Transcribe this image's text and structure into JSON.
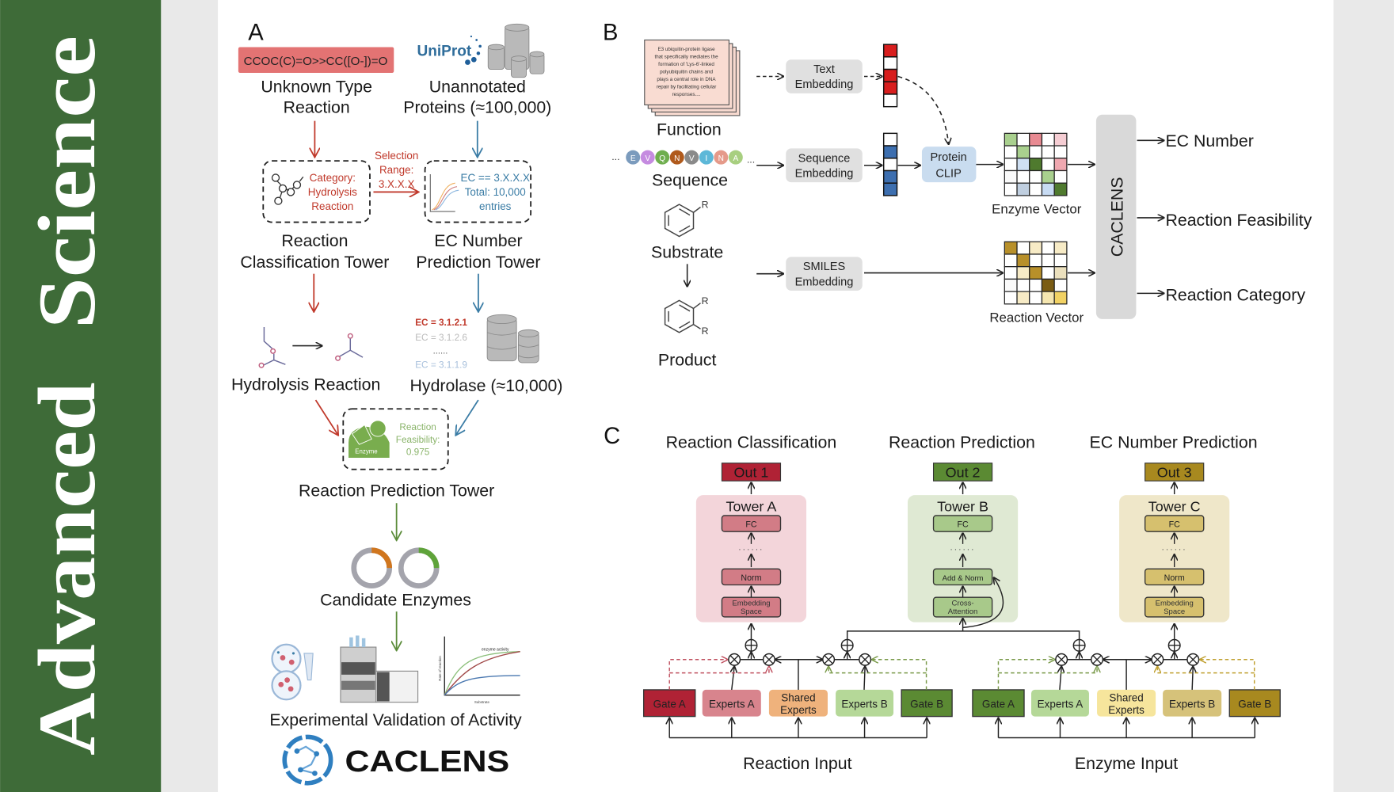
{
  "banner": {
    "word1": "Advanced",
    "word2": "Science",
    "color": "#3e6b38"
  },
  "panel_a": {
    "label": "A",
    "smiles": "CCOC(C)=O>>CC([O-])=O",
    "unknown_reaction": [
      "Unknown Type",
      "Reaction"
    ],
    "uniprot_logo": "UniProt",
    "proteins": [
      "Unannotated",
      "Proteins (≈100,000)"
    ],
    "category": [
      "Category:",
      "Hydrolysis",
      "Reaction"
    ],
    "selection": [
      "Selection",
      "Range:",
      "3.X.X.X"
    ],
    "ec_box": [
      "EC == 3.X.X.X",
      "Total: 10,000",
      "entries"
    ],
    "rc_tower": [
      "Reaction",
      "Classification Tower"
    ],
    "ec_tower": [
      "EC Number",
      "Prediction Tower"
    ],
    "hydrolysis": "Hydrolysis Reaction",
    "ec_list": [
      "EC = 3.1.2.1",
      "EC = 3.1.2.6",
      "......",
      "EC = 3.1.1.9"
    ],
    "hydrolase": "Hydrolase (≈10,000)",
    "enzyme_label": "Enzyme",
    "feasibility": [
      "Reaction",
      "Feasibility:",
      "0.975"
    ],
    "rp_tower": "Reaction Prediction Tower",
    "candidates": "Candidate Enzymes",
    "plot_title": "enzyme activity",
    "plot_x": "Substrate",
    "plot_y": "Rate of reaction",
    "validation": "Experimental Validation of Activity",
    "logo": "CACLENS",
    "colors": {
      "red": "#c0392b",
      "blue": "#3a7ca5",
      "green": "#5b8c3a",
      "smiles_bg": "#e37373"
    }
  },
  "panel_b": {
    "label": "B",
    "function_text": [
      "E3 ubiquitin-protein ligase",
      "that specifically mediates the",
      "formation of 'Lys-6'-linked",
      "polyubiquitin chains and",
      "plays a central role in DNA",
      "repair by facilitating cellular",
      "responses...."
    ],
    "function": "Function",
    "text_embedding": [
      "Text",
      "Embedding"
    ],
    "sequence_letters": [
      "E",
      "V",
      "Q",
      "N",
      "V",
      "I",
      "N",
      "A"
    ],
    "sequence_colors": [
      "#7b9bbd",
      "#c58be0",
      "#6fae4e",
      "#b05a1c",
      "#8a8a8a",
      "#5db8d8",
      "#e59a8a",
      "#a8cf80"
    ],
    "sequence": "Sequence",
    "seq_embedding": [
      "Sequence",
      "Embedding"
    ],
    "protein_clip": [
      "Protein",
      "CLIP"
    ],
    "text_vector": [
      "#d81e1e",
      "#ffffff",
      "#d81e1e",
      "#d81e1e",
      "#ffffff"
    ],
    "seq_vector": [
      "#ffffff",
      "#3d6fb0",
      "#ffffff",
      "#3d6fb0",
      "#3d6fb0"
    ],
    "enzyme_vector": "Enzyme Vector",
    "enzyme_grid": [
      [
        "#a9d08e",
        "#ffffff",
        "#e88a92",
        "#ffffff",
        "#f5cdd3"
      ],
      [
        "#ffffff",
        "#a9d08e",
        "#ffffff",
        "#ffffff",
        "#ffffff"
      ],
      [
        "#ffffff",
        "#cfe0f3",
        "#4f7a2e",
        "#ffffff",
        "#f0a8b0"
      ],
      [
        "#fafafa",
        "#ffffff",
        "#ffffff",
        "#a9d08e",
        "#ffffff"
      ],
      [
        "#ffffff",
        "#c0cfe0",
        "#ffffff",
        "#c7dbf3",
        "#4f7a2e"
      ]
    ],
    "substrate": "Substrate",
    "product": "Product",
    "smiles_embedding": [
      "SMILES",
      "Embedding"
    ],
    "reaction_vector": "Reaction Vector",
    "reaction_grid": [
      [
        "#b8902a",
        "#ffffff",
        "#f7ebc6",
        "#ffffff",
        "#f7ebc6"
      ],
      [
        "#ffffff",
        "#b8902a",
        "#ffffff",
        "#ffffff",
        "#ffffff"
      ],
      [
        "#ffffff",
        "#f7ebc6",
        "#b8902a",
        "#ffffff",
        "#ebe0bd"
      ],
      [
        "#fafafa",
        "#ffffff",
        "#ffffff",
        "#7a5c14",
        "#ffffff"
      ],
      [
        "#ffffff",
        "#f7ebc6",
        "#ffffff",
        "#f5e6b0",
        "#f2d264"
      ]
    ],
    "caclens": "CACLENS",
    "outputs": [
      "EC Number",
      "Reaction Feasibility",
      "Reaction Category"
    ]
  },
  "panel_c": {
    "label": "C",
    "tasks": [
      {
        "title": "Reaction Classification",
        "out": "Out 1",
        "tower": "Tower A",
        "layers": [
          [
            "FC"
          ],
          [
            "Norm"
          ],
          [
            "Embedding",
            "Space"
          ]
        ],
        "out_color": "#b02235",
        "tower_bg": "#f3d5da",
        "layer_color": "#d27c86"
      },
      {
        "title": "Reaction Prediction",
        "out": "Out 2",
        "tower": "Tower B",
        "layers": [
          [
            "FC"
          ],
          [
            "Add & Norm"
          ],
          [
            "Cross-",
            "Attention"
          ]
        ],
        "out_color": "#5b8a33",
        "tower_bg": "#dfe9d3",
        "layer_color": "#a8c98a"
      },
      {
        "title": "EC Number Prediction",
        "out": "Out 3",
        "tower": "Tower C",
        "layers": [
          [
            "FC"
          ],
          [
            "Norm"
          ],
          [
            "Embedding",
            "Space"
          ]
        ],
        "out_color": "#a8891f",
        "tower_bg": "#efe7c9",
        "layer_color": "#d6c06e"
      }
    ],
    "dots": "......",
    "reaction_experts": [
      {
        "label": [
          "Gate A"
        ],
        "color": "#b02235"
      },
      {
        "label": [
          "Experts A"
        ],
        "color": "#d8848d"
      },
      {
        "label": [
          "Shared",
          "Experts"
        ],
        "color": "#efb27c"
      },
      {
        "label": [
          "Experts B"
        ],
        "color": "#b5d898"
      },
      {
        "label": [
          "Gate B"
        ],
        "color": "#5b8a33"
      }
    ],
    "enzyme_experts": [
      {
        "label": [
          "Gate A"
        ],
        "color": "#5b8a33"
      },
      {
        "label": [
          "Experts A"
        ],
        "color": "#b5d898"
      },
      {
        "label": [
          "Shared",
          "Experts"
        ],
        "color": "#f6e59c"
      },
      {
        "label": [
          "Experts B"
        ],
        "color": "#d6c27a"
      },
      {
        "label": [
          "Gate B"
        ],
        "color": "#a8891f"
      }
    ],
    "reaction_input": "Reaction Input",
    "enzyme_input": "Enzyme Input"
  }
}
